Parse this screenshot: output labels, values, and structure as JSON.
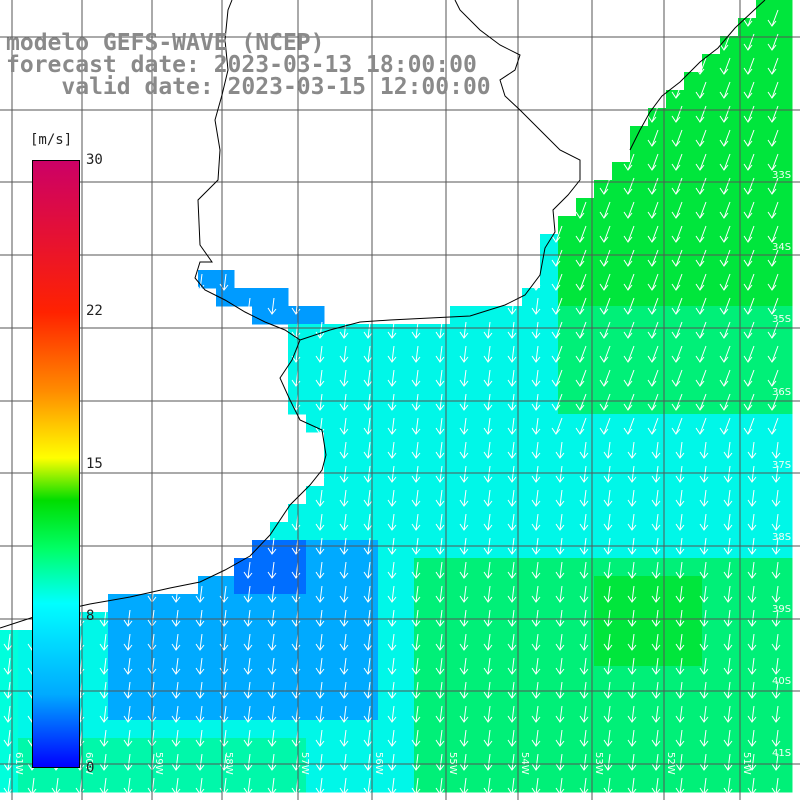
{
  "title": {
    "line1": "modelo GEFS-WAVE (NCEP)",
    "line2": "forecast date: 2023-03-13 18:00:00",
    "line3": "    valid date: 2023-03-15 12:00:00"
  },
  "colorbar": {
    "unit": "[m/s]",
    "ticks": [
      "30",
      "22",
      "15",
      "8",
      "0"
    ]
  },
  "lat_labels": [
    "33S",
    "34S",
    "35S",
    "36S",
    "37S",
    "38S",
    "39S",
    "40S",
    "41S"
  ],
  "lon_labels": [
    "61W",
    "60W",
    "59W",
    "58W",
    "57W",
    "56W",
    "55W",
    "54W",
    "53W",
    "52W",
    "51W"
  ],
  "colors": {
    "land": "#ffffff",
    "grid": "#555555",
    "coast": "#000000",
    "arrow": "#ffffff",
    "title": "#8a8a8a"
  }
}
